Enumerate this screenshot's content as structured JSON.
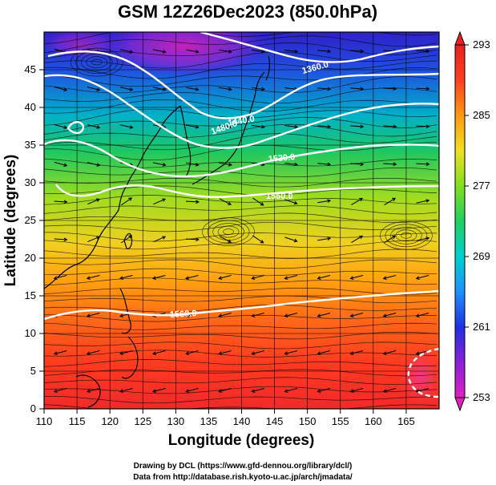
{
  "title": "GSM 12Z26Dec2023 (850.0hPa)",
  "x_axis": {
    "label": "Longitude (degrees)",
    "ticks": [
      "110",
      "115",
      "120",
      "125",
      "130",
      "135",
      "140",
      "145",
      "150",
      "155",
      "160",
      "165"
    ],
    "range": [
      110,
      170
    ]
  },
  "y_axis": {
    "label": "Latitude  (degrees)",
    "ticks": [
      "0",
      "5",
      "10",
      "15",
      "20",
      "25",
      "30",
      "35",
      "40",
      "45"
    ],
    "range": [
      0,
      50
    ]
  },
  "colorbar": {
    "ticks": [
      "253",
      "261",
      "269",
      "277",
      "285",
      "293"
    ],
    "range": [
      253,
      293
    ],
    "colors": [
      "#e020c0",
      "#8a20d8",
      "#2030e0",
      "#1e90ff",
      "#00d0d0",
      "#20d060",
      "#80e020",
      "#f0e020",
      "#ff9a10",
      "#ff4020",
      "#e82020"
    ]
  },
  "contour_labels": [
    "1360.0",
    "1440.0",
    "1480.0",
    "1520.0",
    "1560.0",
    "1560.0"
  ],
  "credits": {
    "line1": "Drawing by DCL (https://www.gfd-dennou.org/library/dcl/)",
    "line2": "Data from http://database.rish.kyoto-u.ac.jp/arch/jmadata/"
  }
}
